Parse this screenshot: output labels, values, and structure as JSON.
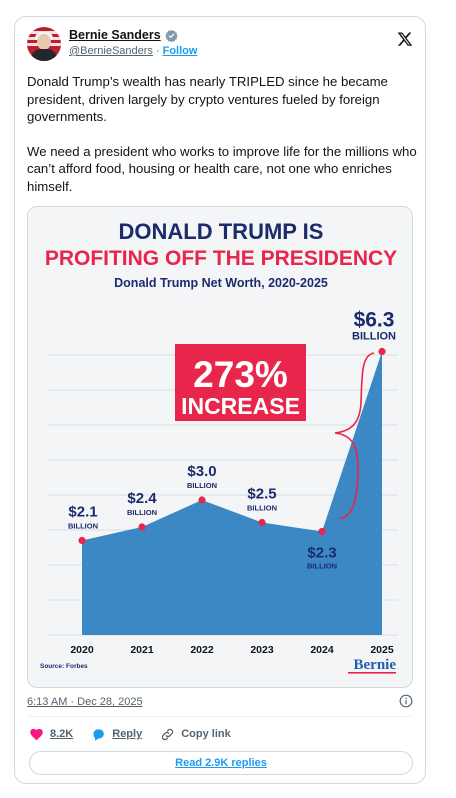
{
  "author": {
    "display_name": "Bernie Sanders",
    "handle": "@BernieSanders",
    "separator": "·",
    "follow_label": "Follow"
  },
  "tweet": {
    "paragraphs": [
      "Donald Trump’s wealth has nearly TRIPLED since he became president, driven largely by crypto ventures fueled by foreign governments.",
      "We need a president who works to improve life for the millions who can’t afford food, housing or health care, not one who enriches himself."
    ],
    "timestamp": "6:13 AM · Dec 28, 2025"
  },
  "infographic": {
    "headline_1": "DONALD TRUMP IS",
    "headline_2": "PROFITING OFF THE PRESIDENCY",
    "callout_line_1": "273%",
    "callout_line_2": "INCREASE",
    "source": "Source: Forbes",
    "brand": "Bernie"
  },
  "chart_data": {
    "type": "area",
    "title": "Donald Trump Net Worth, 2020-2025",
    "categories": [
      "2020",
      "2021",
      "2022",
      "2023",
      "2024",
      "2025"
    ],
    "values": [
      2.1,
      2.4,
      3.0,
      2.5,
      2.3,
      6.3
    ],
    "value_labels": [
      "$2.1",
      "$2.4",
      "$3.0",
      "$2.5",
      "$2.3",
      "$6.3"
    ],
    "unit_label": "BILLION",
    "xlabel": "",
    "ylabel": "",
    "grid": true,
    "colors": {
      "fill": "#3b88c4",
      "marker": "#e8254a",
      "text": "#1d2b6b",
      "accent": "#e8254a"
    }
  },
  "actions": {
    "like_count": "8.2K",
    "reply_label": "Reply",
    "copy_label": "Copy link",
    "read_replies": "Read 2.9K replies"
  },
  "colors": {
    "accent": "#1d9bf0",
    "like": "#f91880"
  }
}
